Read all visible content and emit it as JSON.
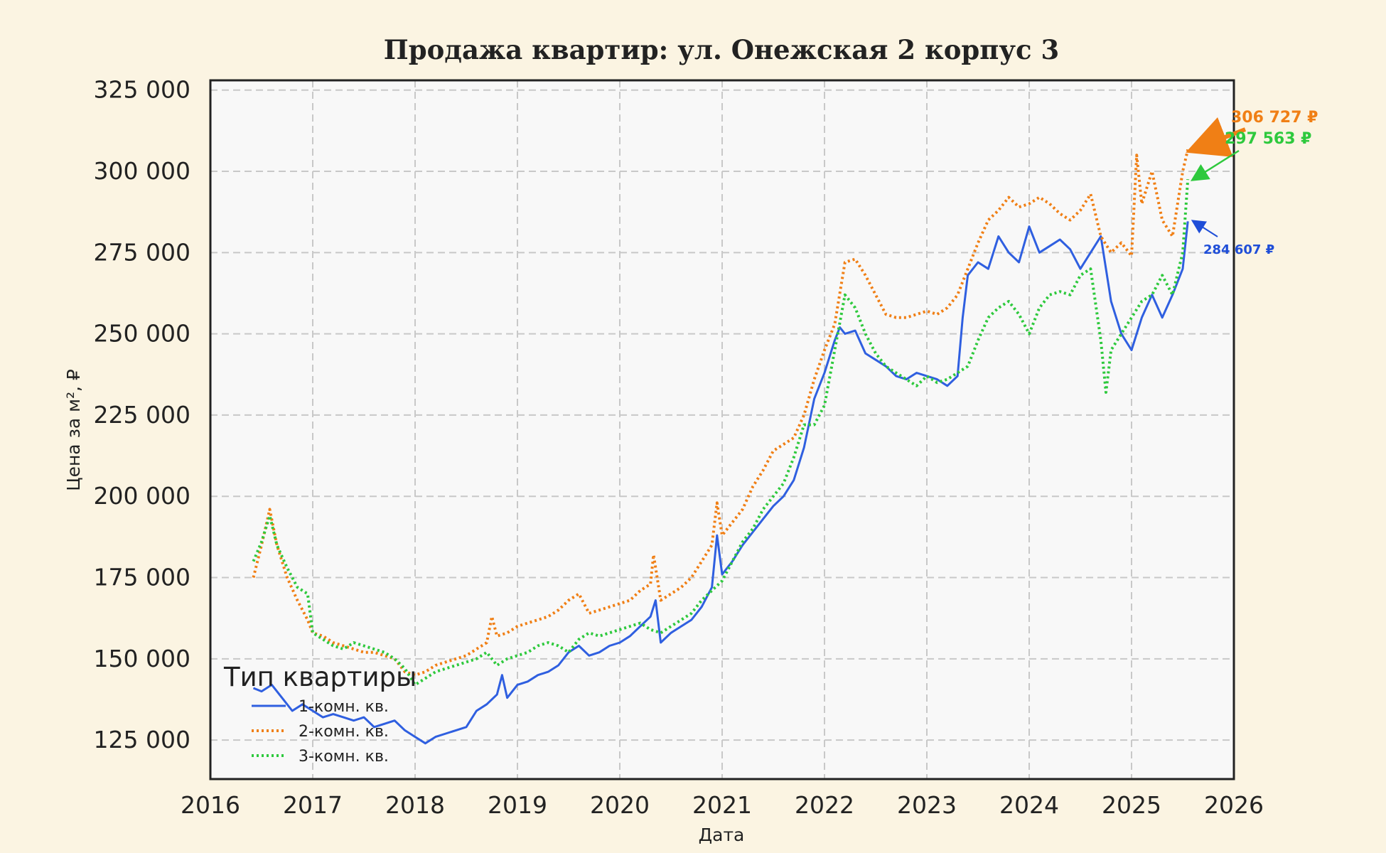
{
  "chart_data": {
    "type": "line",
    "title": "Продажа квартир: ул. Онежская 2 корпус 3",
    "xlabel": "Дата",
    "ylabel": "Цена за м², ₽",
    "xlim": [
      2016.0,
      2026.0
    ],
    "ylim": [
      113000,
      328000
    ],
    "xticks": [
      2016,
      2017,
      2018,
      2019,
      2020,
      2021,
      2022,
      2023,
      2024,
      2025,
      2026
    ],
    "yticks": [
      125000,
      150000,
      175000,
      200000,
      225000,
      250000,
      275000,
      300000,
      325000
    ],
    "ytick_labels": [
      "125 000",
      "150 000",
      "175 000",
      "200 000",
      "225 000",
      "250 000",
      "275 000",
      "300 000",
      "325 000"
    ],
    "grid": true,
    "legend": {
      "title": "Тип квартиры",
      "position": "lower-left"
    },
    "series": [
      {
        "name": "1-комн. кв.",
        "color": "#2f5fe0",
        "style": "solid",
        "x": [
          2016.42,
          2016.5,
          2016.6,
          2016.7,
          2016.8,
          2016.9,
          2017.0,
          2017.1,
          2017.2,
          2017.3,
          2017.4,
          2017.5,
          2017.6,
          2017.7,
          2017.8,
          2017.9,
          2018.0,
          2018.1,
          2018.2,
          2018.3,
          2018.4,
          2018.5,
          2018.6,
          2018.7,
          2018.8,
          2018.85,
          2018.9,
          2019.0,
          2019.1,
          2019.2,
          2019.3,
          2019.4,
          2019.5,
          2019.6,
          2019.7,
          2019.8,
          2019.9,
          2020.0,
          2020.1,
          2020.2,
          2020.3,
          2020.35,
          2020.4,
          2020.5,
          2020.6,
          2020.7,
          2020.8,
          2020.9,
          2020.95,
          2021.0,
          2021.1,
          2021.2,
          2021.3,
          2021.4,
          2021.5,
          2021.6,
          2021.7,
          2021.8,
          2021.9,
          2022.0,
          2022.1,
          2022.15,
          2022.2,
          2022.3,
          2022.4,
          2022.5,
          2022.6,
          2022.7,
          2022.8,
          2022.9,
          2023.0,
          2023.1,
          2023.2,
          2023.3,
          2023.35,
          2023.4,
          2023.5,
          2023.6,
          2023.7,
          2023.8,
          2023.9,
          2024.0,
          2024.1,
          2024.2,
          2024.3,
          2024.4,
          2024.5,
          2024.6,
          2024.7,
          2024.8,
          2024.9,
          2025.0,
          2025.1,
          2025.2,
          2025.3,
          2025.4,
          2025.5,
          2025.55
        ],
        "y": [
          141000,
          140000,
          142000,
          138000,
          134000,
          136000,
          134000,
          132000,
          133000,
          132000,
          131000,
          132000,
          129000,
          130000,
          131000,
          128000,
          126000,
          124000,
          126000,
          127000,
          128000,
          129000,
          134000,
          136000,
          139000,
          145000,
          138000,
          142000,
          143000,
          145000,
          146000,
          148000,
          152000,
          154000,
          151000,
          152000,
          154000,
          155000,
          157000,
          160000,
          163000,
          168000,
          155000,
          158000,
          160000,
          162000,
          166000,
          172000,
          188000,
          176000,
          180000,
          185000,
          189000,
          193000,
          197000,
          200000,
          205000,
          215000,
          230000,
          238000,
          248000,
          252000,
          250000,
          251000,
          244000,
          242000,
          240000,
          237000,
          236000,
          238000,
          237000,
          236000,
          234000,
          237000,
          255000,
          268000,
          272000,
          270000,
          280000,
          275000,
          272000,
          283000,
          275000,
          277000,
          279000,
          276000,
          270000,
          275000,
          280000,
          260000,
          250000,
          245000,
          255000,
          262000,
          255000,
          262000,
          270000,
          284607
        ]
      },
      {
        "name": "2-комн. кв.",
        "color": "#f07f15",
        "style": "dotted",
        "x": [
          2016.42,
          2016.5,
          2016.58,
          2016.65,
          2016.75,
          2016.85,
          2016.95,
          2017.0,
          2017.1,
          2017.2,
          2017.3,
          2017.4,
          2017.5,
          2017.6,
          2017.7,
          2017.8,
          2017.9,
          2018.0,
          2018.1,
          2018.2,
          2018.3,
          2018.4,
          2018.5,
          2018.6,
          2018.7,
          2018.75,
          2018.8,
          2018.9,
          2019.0,
          2019.1,
          2019.2,
          2019.3,
          2019.4,
          2019.5,
          2019.6,
          2019.7,
          2019.8,
          2019.9,
          2020.0,
          2020.1,
          2020.2,
          2020.3,
          2020.33,
          2020.4,
          2020.5,
          2020.6,
          2020.7,
          2020.8,
          2020.9,
          2020.95,
          2021.0,
          2021.1,
          2021.2,
          2021.3,
          2021.4,
          2021.5,
          2021.6,
          2021.7,
          2021.8,
          2021.9,
          2022.0,
          2022.1,
          2022.2,
          2022.3,
          2022.4,
          2022.5,
          2022.6,
          2022.7,
          2022.8,
          2022.9,
          2023.0,
          2023.1,
          2023.2,
          2023.3,
          2023.4,
          2023.5,
          2023.6,
          2023.7,
          2023.8,
          2023.9,
          2024.0,
          2024.1,
          2024.2,
          2024.3,
          2024.4,
          2024.5,
          2024.6,
          2024.7,
          2024.8,
          2024.9,
          2025.0,
          2025.05,
          2025.1,
          2025.2,
          2025.3,
          2025.4,
          2025.5,
          2025.55
        ],
        "y": [
          175000,
          185000,
          196000,
          185000,
          175000,
          168000,
          162000,
          158000,
          157000,
          155000,
          154000,
          153000,
          152000,
          152000,
          151000,
          150000,
          146000,
          145000,
          146000,
          148000,
          149000,
          150000,
          151000,
          153000,
          155000,
          163000,
          157000,
          158000,
          160000,
          161000,
          162000,
          163000,
          165000,
          168000,
          170000,
          164000,
          165000,
          166000,
          167000,
          168000,
          171000,
          173000,
          182000,
          168000,
          170000,
          172000,
          175000,
          180000,
          185000,
          198000,
          188000,
          192000,
          196000,
          203000,
          208000,
          214000,
          216000,
          218000,
          225000,
          236000,
          245000,
          253000,
          272000,
          273000,
          268000,
          262000,
          256000,
          255000,
          255000,
          256000,
          257000,
          256000,
          258000,
          262000,
          270000,
          278000,
          285000,
          288000,
          292000,
          289000,
          290000,
          292000,
          290000,
          287000,
          285000,
          288000,
          293000,
          280000,
          275000,
          278000,
          274000,
          305000,
          290000,
          300000,
          285000,
          280000,
          300000,
          306727
        ]
      },
      {
        "name": "3-комн. кв.",
        "color": "#2ec93d",
        "style": "dotted",
        "x": [
          2016.42,
          2016.5,
          2016.58,
          2016.65,
          2016.75,
          2016.85,
          2016.95,
          2017.0,
          2017.1,
          2017.2,
          2017.3,
          2017.4,
          2017.5,
          2017.6,
          2017.7,
          2017.8,
          2017.9,
          2018.0,
          2018.1,
          2018.2,
          2018.3,
          2018.4,
          2018.5,
          2018.6,
          2018.7,
          2018.8,
          2018.9,
          2019.0,
          2019.1,
          2019.2,
          2019.3,
          2019.4,
          2019.5,
          2019.6,
          2019.7,
          2019.8,
          2019.9,
          2020.0,
          2020.1,
          2020.2,
          2020.3,
          2020.4,
          2020.5,
          2020.6,
          2020.7,
          2020.8,
          2020.9,
          2021.0,
          2021.1,
          2021.2,
          2021.3,
          2021.4,
          2021.5,
          2021.6,
          2021.7,
          2021.8,
          2021.9,
          2022.0,
          2022.1,
          2022.2,
          2022.3,
          2022.4,
          2022.5,
          2022.6,
          2022.7,
          2022.8,
          2022.9,
          2023.0,
          2023.1,
          2023.2,
          2023.3,
          2023.4,
          2023.5,
          2023.6,
          2023.7,
          2023.8,
          2023.9,
          2024.0,
          2024.1,
          2024.2,
          2024.3,
          2024.4,
          2024.5,
          2024.6,
          2024.7,
          2024.75,
          2024.8,
          2024.9,
          2025.0,
          2025.1,
          2025.2,
          2025.3,
          2025.4,
          2025.5,
          2025.55
        ],
        "y": [
          180000,
          186000,
          194000,
          185000,
          178000,
          172000,
          170000,
          158000,
          156000,
          154000,
          153000,
          155000,
          154000,
          153000,
          152000,
          150000,
          147000,
          142000,
          144000,
          146000,
          147000,
          148000,
          149000,
          150000,
          152000,
          148000,
          150000,
          151000,
          152000,
          154000,
          155000,
          154000,
          152000,
          156000,
          158000,
          157000,
          158000,
          159000,
          160000,
          161000,
          159000,
          158000,
          160000,
          162000,
          164000,
          168000,
          171000,
          174000,
          180000,
          186000,
          190000,
          196000,
          200000,
          204000,
          212000,
          222000,
          222000,
          228000,
          245000,
          262000,
          258000,
          250000,
          244000,
          240000,
          238000,
          236000,
          234000,
          237000,
          235000,
          236000,
          238000,
          240000,
          248000,
          255000,
          258000,
          260000,
          256000,
          250000,
          258000,
          262000,
          263000,
          262000,
          268000,
          270000,
          248000,
          232000,
          245000,
          250000,
          255000,
          260000,
          262000,
          268000,
          262000,
          275000,
          297563
        ]
      }
    ],
    "annotations": [
      {
        "text": "306 727 ₽",
        "series": "2-комн. кв.",
        "color": "#f07f15"
      },
      {
        "text": "297 563 ₽",
        "series": "3-комн. кв.",
        "color": "#2ec93d"
      },
      {
        "text": "284 607 ₽",
        "series": "1-комн. кв.",
        "color": "#1f4ed8"
      }
    ]
  }
}
